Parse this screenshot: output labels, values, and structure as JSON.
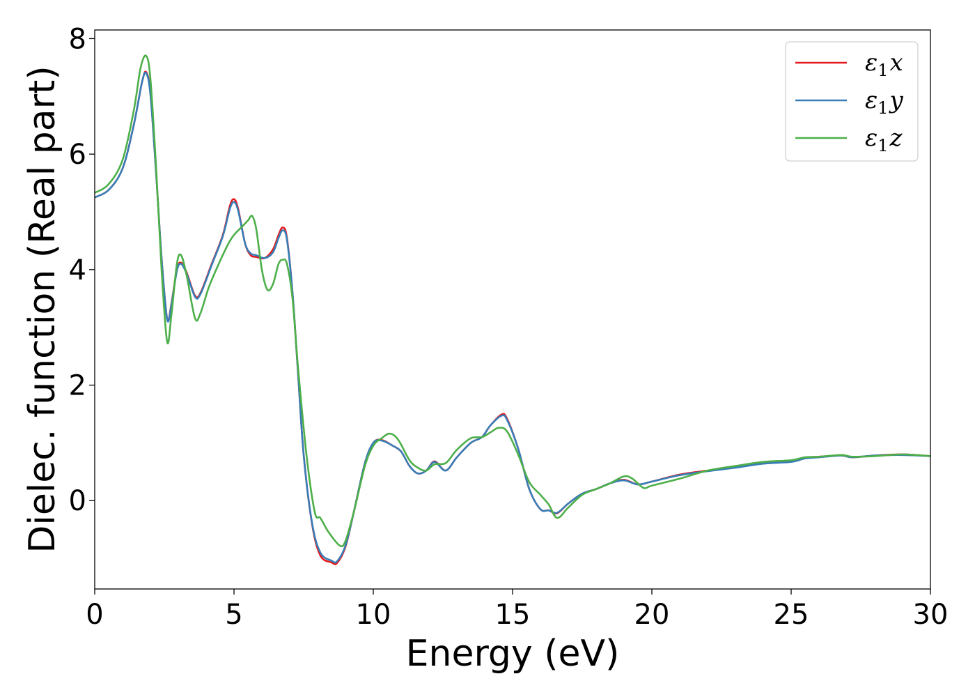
{
  "chart_data": {
    "type": "line",
    "xlabel": "Energy (eV)",
    "ylabel": "Dielec. function (Real part)",
    "xlim": [
      0,
      30
    ],
    "ylim": [
      -1.53,
      8.15
    ],
    "xticks": [
      0,
      5,
      10,
      15,
      20,
      25,
      30
    ],
    "yticks": [
      0,
      2,
      4,
      6,
      8
    ],
    "grid": false,
    "legend_position": "top-right",
    "series": [
      {
        "name": "ε1x",
        "legend": {
          "sym": "ε",
          "sub": "1",
          "var": "x"
        },
        "color": "#e41a1c",
        "points": [
          [
            0,
            5.25
          ],
          [
            0.5,
            5.38
          ],
          [
            1.0,
            5.75
          ],
          [
            1.4,
            6.5
          ],
          [
            1.7,
            7.25
          ],
          [
            1.85,
            7.42
          ],
          [
            2.0,
            7.05
          ],
          [
            2.2,
            5.7
          ],
          [
            2.4,
            4.2
          ],
          [
            2.6,
            3.15
          ],
          [
            2.75,
            3.4
          ],
          [
            2.95,
            4.0
          ],
          [
            3.1,
            4.12
          ],
          [
            3.3,
            3.95
          ],
          [
            3.6,
            3.55
          ],
          [
            3.8,
            3.6
          ],
          [
            4.2,
            4.1
          ],
          [
            4.6,
            4.6
          ],
          [
            4.85,
            5.1
          ],
          [
            5.0,
            5.22
          ],
          [
            5.15,
            5.05
          ],
          [
            5.4,
            4.45
          ],
          [
            5.6,
            4.25
          ],
          [
            5.8,
            4.22
          ],
          [
            6.1,
            4.2
          ],
          [
            6.4,
            4.35
          ],
          [
            6.6,
            4.6
          ],
          [
            6.75,
            4.73
          ],
          [
            6.9,
            4.55
          ],
          [
            7.1,
            3.6
          ],
          [
            7.3,
            2.2
          ],
          [
            7.5,
            0.8
          ],
          [
            7.8,
            -0.4
          ],
          [
            8.1,
            -0.95
          ],
          [
            8.5,
            -1.07
          ],
          [
            8.7,
            -1.08
          ],
          [
            9.0,
            -0.8
          ],
          [
            9.3,
            -0.2
          ],
          [
            9.7,
            0.65
          ],
          [
            10.0,
            1.0
          ],
          [
            10.3,
            1.05
          ],
          [
            10.7,
            0.95
          ],
          [
            11.0,
            0.85
          ],
          [
            11.3,
            0.6
          ],
          [
            11.6,
            0.47
          ],
          [
            11.9,
            0.52
          ],
          [
            12.2,
            0.68
          ],
          [
            12.6,
            0.52
          ],
          [
            13.0,
            0.75
          ],
          [
            13.5,
            1.0
          ],
          [
            13.9,
            1.1
          ],
          [
            14.2,
            1.3
          ],
          [
            14.6,
            1.49
          ],
          [
            14.8,
            1.42
          ],
          [
            15.2,
            0.9
          ],
          [
            15.6,
            0.2
          ],
          [
            16.0,
            -0.15
          ],
          [
            16.3,
            -0.17
          ],
          [
            16.6,
            -0.22
          ],
          [
            17.0,
            -0.05
          ],
          [
            17.5,
            0.12
          ],
          [
            18.0,
            0.2
          ],
          [
            18.5,
            0.3
          ],
          [
            19.0,
            0.36
          ],
          [
            19.5,
            0.28
          ],
          [
            20.0,
            0.33
          ],
          [
            21.0,
            0.45
          ],
          [
            22.0,
            0.52
          ],
          [
            23.0,
            0.58
          ],
          [
            24.0,
            0.65
          ],
          [
            25.0,
            0.68
          ],
          [
            25.5,
            0.74
          ],
          [
            26.0,
            0.76
          ],
          [
            26.8,
            0.78
          ],
          [
            27.2,
            0.75
          ],
          [
            28.0,
            0.78
          ],
          [
            29.0,
            0.8
          ],
          [
            30.0,
            0.77
          ]
        ]
      },
      {
        "name": "ε1y",
        "legend": {
          "sym": "ε",
          "sub": "1",
          "var": "y"
        },
        "color": "#377eb8",
        "points": [
          [
            0,
            5.25
          ],
          [
            0.5,
            5.38
          ],
          [
            1.0,
            5.75
          ],
          [
            1.4,
            6.5
          ],
          [
            1.7,
            7.25
          ],
          [
            1.85,
            7.4
          ],
          [
            2.0,
            7.03
          ],
          [
            2.2,
            5.7
          ],
          [
            2.4,
            4.2
          ],
          [
            2.6,
            3.14
          ],
          [
            2.75,
            3.38
          ],
          [
            2.95,
            3.98
          ],
          [
            3.1,
            4.1
          ],
          [
            3.3,
            3.93
          ],
          [
            3.6,
            3.53
          ],
          [
            3.8,
            3.58
          ],
          [
            4.2,
            4.08
          ],
          [
            4.6,
            4.58
          ],
          [
            4.85,
            5.05
          ],
          [
            5.0,
            5.17
          ],
          [
            5.15,
            5.02
          ],
          [
            5.4,
            4.45
          ],
          [
            5.6,
            4.28
          ],
          [
            5.8,
            4.25
          ],
          [
            6.1,
            4.2
          ],
          [
            6.4,
            4.3
          ],
          [
            6.6,
            4.55
          ],
          [
            6.75,
            4.68
          ],
          [
            6.9,
            4.52
          ],
          [
            7.1,
            3.6
          ],
          [
            7.3,
            2.2
          ],
          [
            7.5,
            0.8
          ],
          [
            7.8,
            -0.38
          ],
          [
            8.1,
            -0.9
          ],
          [
            8.5,
            -1.04
          ],
          [
            8.7,
            -1.05
          ],
          [
            9.0,
            -0.78
          ],
          [
            9.3,
            -0.2
          ],
          [
            9.7,
            0.65
          ],
          [
            10.0,
            1.0
          ],
          [
            10.3,
            1.04
          ],
          [
            10.7,
            0.95
          ],
          [
            11.0,
            0.85
          ],
          [
            11.3,
            0.6
          ],
          [
            11.6,
            0.47
          ],
          [
            11.9,
            0.52
          ],
          [
            12.2,
            0.67
          ],
          [
            12.6,
            0.52
          ],
          [
            13.0,
            0.75
          ],
          [
            13.5,
            1.0
          ],
          [
            13.9,
            1.1
          ],
          [
            14.2,
            1.3
          ],
          [
            14.6,
            1.47
          ],
          [
            14.8,
            1.4
          ],
          [
            15.2,
            0.9
          ],
          [
            15.6,
            0.2
          ],
          [
            16.0,
            -0.15
          ],
          [
            16.3,
            -0.17
          ],
          [
            16.6,
            -0.21
          ],
          [
            17.0,
            -0.05
          ],
          [
            17.5,
            0.12
          ],
          [
            18.0,
            0.2
          ],
          [
            18.5,
            0.3
          ],
          [
            19.0,
            0.35
          ],
          [
            19.5,
            0.28
          ],
          [
            20.0,
            0.33
          ],
          [
            21.0,
            0.44
          ],
          [
            22.0,
            0.51
          ],
          [
            23.0,
            0.57
          ],
          [
            24.0,
            0.64
          ],
          [
            25.0,
            0.67
          ],
          [
            25.5,
            0.73
          ],
          [
            26.0,
            0.75
          ],
          [
            26.8,
            0.78
          ],
          [
            27.2,
            0.75
          ],
          [
            28.0,
            0.78
          ],
          [
            29.0,
            0.79
          ],
          [
            30.0,
            0.77
          ]
        ]
      },
      {
        "name": "ε1z",
        "legend": {
          "sym": "ε",
          "sub": "1",
          "var": "z"
        },
        "color": "#4daf4a",
        "points": [
          [
            0,
            5.33
          ],
          [
            0.5,
            5.48
          ],
          [
            1.0,
            5.9
          ],
          [
            1.4,
            6.75
          ],
          [
            1.65,
            7.5
          ],
          [
            1.85,
            7.7
          ],
          [
            2.0,
            7.3
          ],
          [
            2.2,
            5.8
          ],
          [
            2.4,
            4.0
          ],
          [
            2.6,
            2.75
          ],
          [
            2.75,
            3.2
          ],
          [
            2.95,
            4.1
          ],
          [
            3.1,
            4.25
          ],
          [
            3.3,
            3.9
          ],
          [
            3.6,
            3.16
          ],
          [
            3.8,
            3.25
          ],
          [
            4.1,
            3.7
          ],
          [
            4.5,
            4.15
          ],
          [
            4.8,
            4.45
          ],
          [
            5.0,
            4.6
          ],
          [
            5.3,
            4.75
          ],
          [
            5.5,
            4.85
          ],
          [
            5.65,
            4.93
          ],
          [
            5.8,
            4.7
          ],
          [
            6.0,
            4.0
          ],
          [
            6.2,
            3.65
          ],
          [
            6.4,
            3.75
          ],
          [
            6.6,
            4.1
          ],
          [
            6.75,
            4.17
          ],
          [
            6.9,
            4.1
          ],
          [
            7.1,
            3.5
          ],
          [
            7.3,
            2.3
          ],
          [
            7.6,
            0.8
          ],
          [
            7.9,
            -0.2
          ],
          [
            8.1,
            -0.3
          ],
          [
            8.4,
            -0.55
          ],
          [
            8.8,
            -0.78
          ],
          [
            9.0,
            -0.7
          ],
          [
            9.3,
            -0.2
          ],
          [
            9.7,
            0.6
          ],
          [
            10.0,
            0.95
          ],
          [
            10.3,
            1.08
          ],
          [
            10.6,
            1.16
          ],
          [
            10.9,
            1.05
          ],
          [
            11.3,
            0.7
          ],
          [
            11.6,
            0.57
          ],
          [
            11.9,
            0.52
          ],
          [
            12.2,
            0.63
          ],
          [
            12.6,
            0.65
          ],
          [
            13.0,
            0.88
          ],
          [
            13.5,
            1.08
          ],
          [
            13.9,
            1.1
          ],
          [
            14.2,
            1.18
          ],
          [
            14.5,
            1.26
          ],
          [
            14.8,
            1.2
          ],
          [
            15.2,
            0.8
          ],
          [
            15.6,
            0.32
          ],
          [
            16.0,
            0.1
          ],
          [
            16.3,
            -0.07
          ],
          [
            16.6,
            -0.3
          ],
          [
            17.0,
            -0.12
          ],
          [
            17.5,
            0.1
          ],
          [
            18.0,
            0.2
          ],
          [
            18.5,
            0.3
          ],
          [
            19.0,
            0.42
          ],
          [
            19.3,
            0.38
          ],
          [
            19.7,
            0.22
          ],
          [
            20.0,
            0.26
          ],
          [
            21.0,
            0.38
          ],
          [
            22.0,
            0.52
          ],
          [
            23.0,
            0.6
          ],
          [
            24.0,
            0.67
          ],
          [
            25.0,
            0.7
          ],
          [
            25.5,
            0.75
          ],
          [
            26.0,
            0.76
          ],
          [
            26.8,
            0.79
          ],
          [
            27.2,
            0.76
          ],
          [
            28.0,
            0.77
          ],
          [
            29.0,
            0.8
          ],
          [
            30.0,
            0.77
          ]
        ]
      }
    ]
  }
}
